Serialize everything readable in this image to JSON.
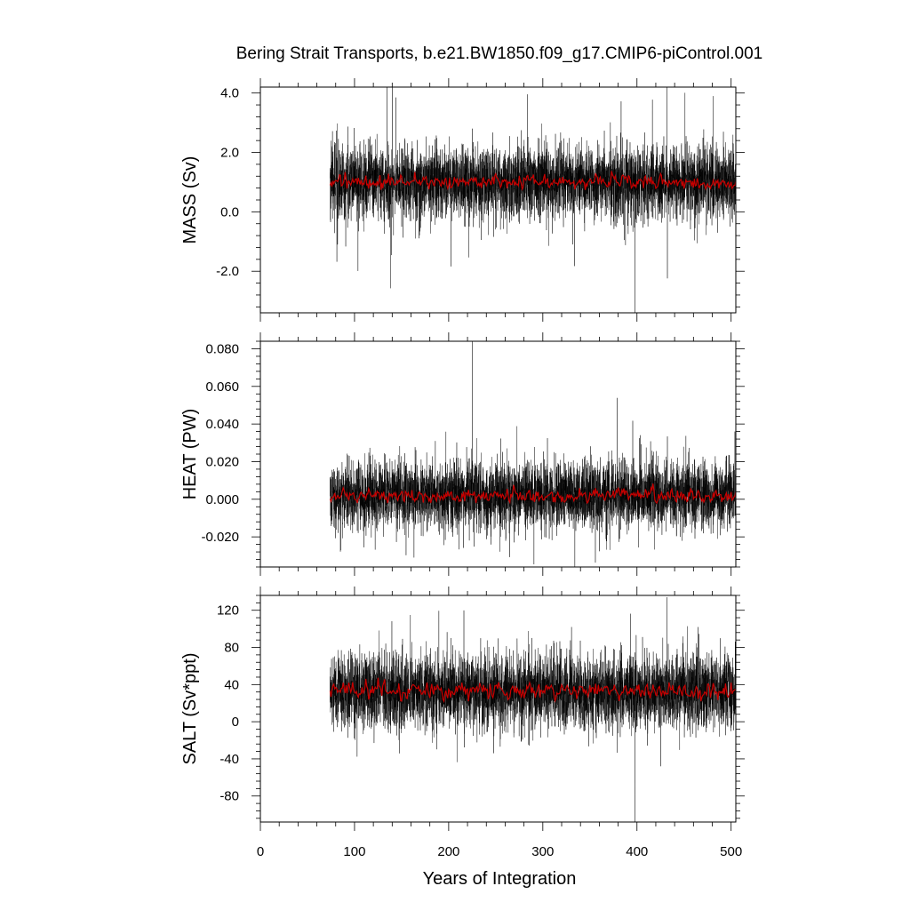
{
  "figure": {
    "title": "Bering Strait Transports, b.e21.BW1850.f09_g17.CMIP6-piControl.001",
    "xlabel": "Years of Integration"
  },
  "colors": {
    "monthly_series": "#000000",
    "annual_mean": "#c80000",
    "frame": "#000000",
    "background": "#ffffff"
  },
  "chart_data": [
    {
      "type": "line",
      "panel": "mass",
      "ylabel": "MASS (Sv)",
      "xlim": [
        0,
        505
      ],
      "ylim": [
        -3.4,
        4.2
      ],
      "xticks": [
        "0",
        "100",
        "200",
        "300",
        "400",
        "500"
      ],
      "yticks": [
        "-2.0",
        "0.0",
        "2.0",
        "4.0"
      ],
      "grid": false,
      "x_start": 74,
      "x_end": 505,
      "series": [
        {
          "role": "monthly",
          "mean": 1.0,
          "spread": 0.6,
          "max": 4.2,
          "min": -3.4
        },
        {
          "role": "annual_mean",
          "mean": 1.0,
          "range": [
            0.7,
            1.5
          ]
        }
      ]
    },
    {
      "type": "line",
      "panel": "heat",
      "ylabel": "HEAT (PW)",
      "xlim": [
        0,
        505
      ],
      "ylim": [
        -0.036,
        0.084
      ],
      "xticks": [
        "0",
        "100",
        "200",
        "300",
        "400",
        "500"
      ],
      "yticks": [
        "-0.020",
        "0.000",
        "0.020",
        "0.040",
        "0.060",
        "0.080"
      ],
      "grid": false,
      "x_start": 74,
      "x_end": 505,
      "series": [
        {
          "role": "monthly",
          "mean": 0.002,
          "spread": 0.009,
          "max": 0.084,
          "min": -0.036
        },
        {
          "role": "annual_mean",
          "mean": 0.002,
          "range": [
            -0.002,
            0.01
          ]
        }
      ]
    },
    {
      "type": "line",
      "panel": "salt",
      "ylabel": "SALT (Sv*ppt)",
      "xlim": [
        0,
        505
      ],
      "ylim": [
        -108,
        136
      ],
      "xticks": [
        "0",
        "100",
        "200",
        "300",
        "400",
        "500"
      ],
      "yticks": [
        "-80",
        "-40",
        "0",
        "40",
        "80",
        "120"
      ],
      "grid": false,
      "x_start": 74,
      "x_end": 505,
      "series": [
        {
          "role": "monthly",
          "mean": 33,
          "spread": 20,
          "max": 134,
          "min": -108
        },
        {
          "role": "annual_mean",
          "mean": 33,
          "range": [
            22,
            50
          ]
        }
      ]
    }
  ]
}
